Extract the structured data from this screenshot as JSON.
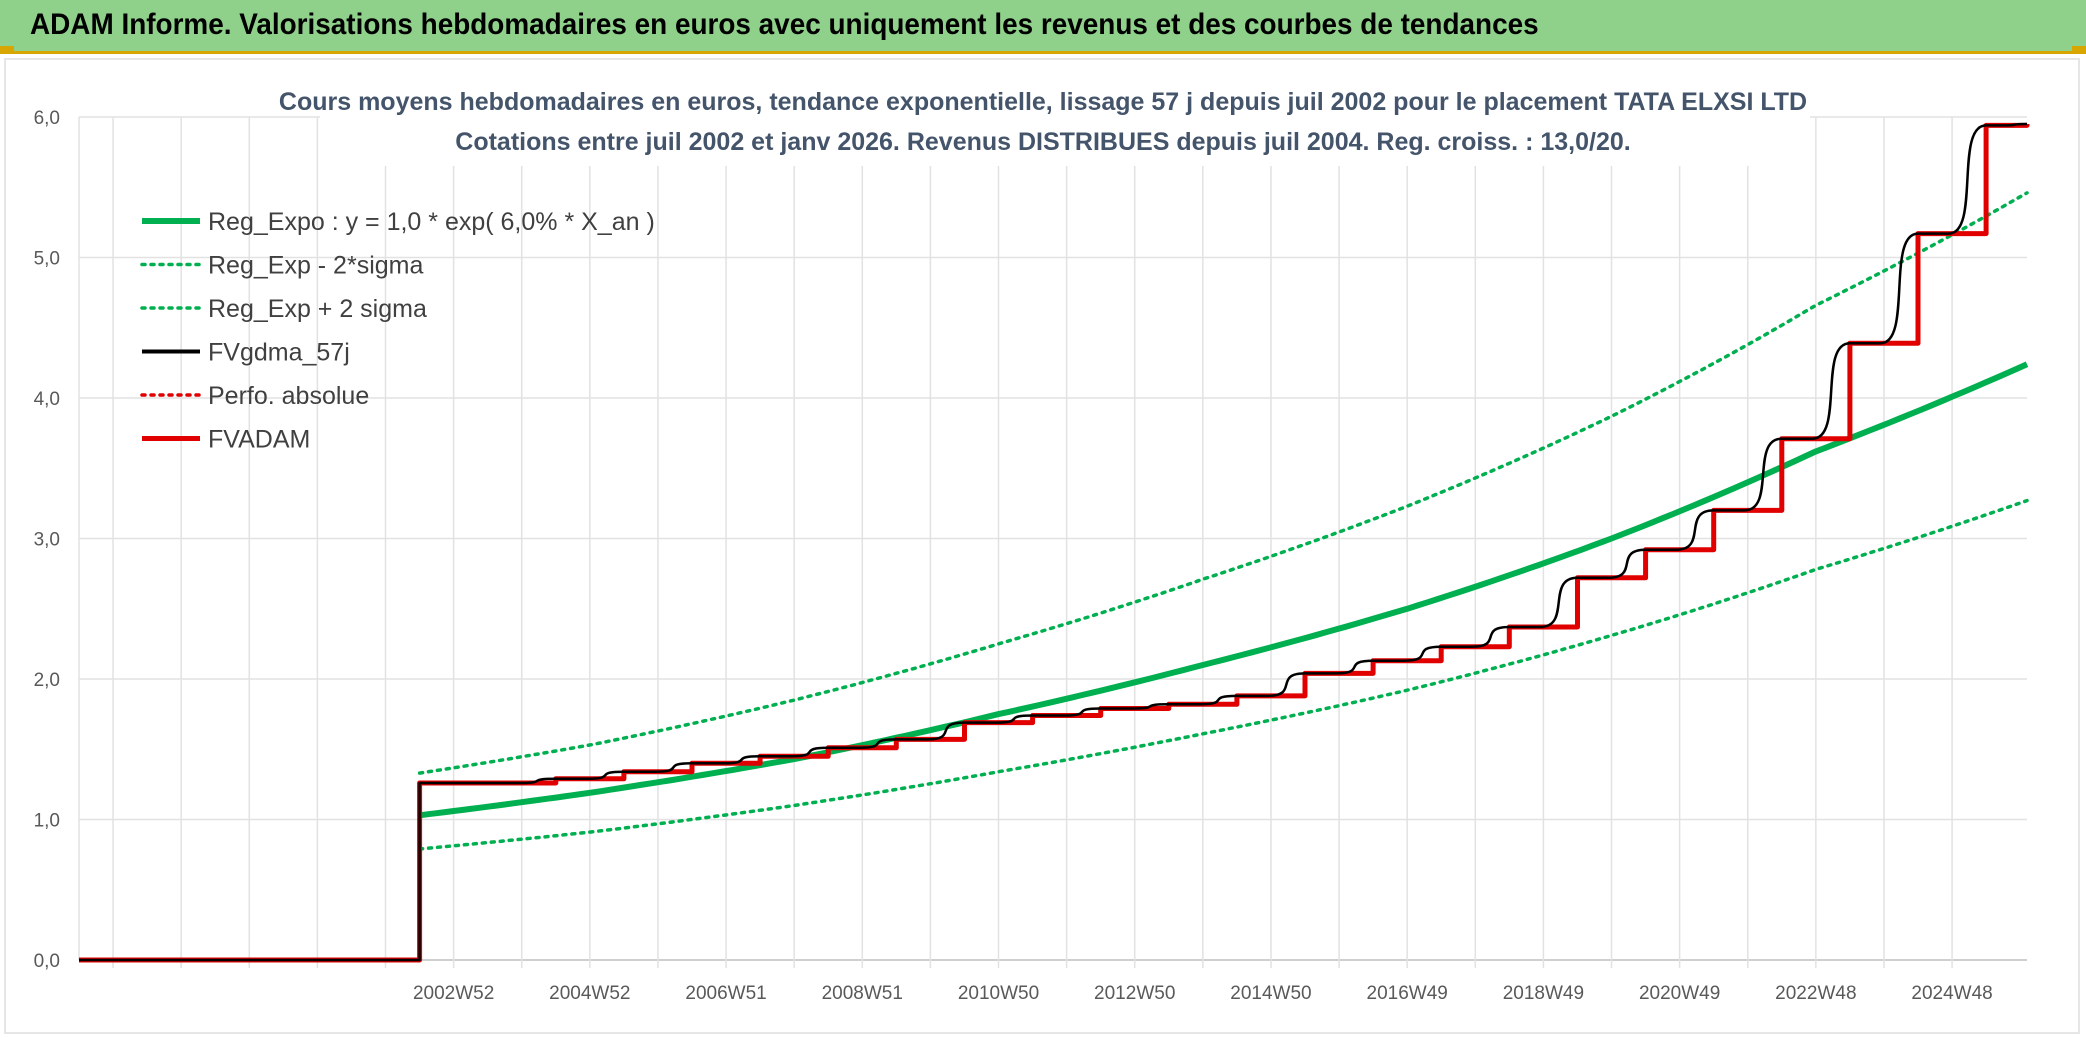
{
  "banner": {
    "title": "ADAM Informe. Valorisations hebdomadaires en euros avec uniquement les revenus et des courbes de tendances"
  },
  "colors": {
    "banner_bg": "#8fd18a",
    "banner_accent": "#d8a600",
    "trend": "#00b050",
    "price": "#e00000",
    "smooth": "#000000",
    "title_text": "#44546a"
  },
  "chart_data": {
    "type": "line",
    "title": "Cours moyens hebdomadaires en euros, tendance exponentielle, lissage 57 j depuis juil 2002 pour le placement TATA  ELXSI LTD",
    "subtitle": "Cotations entre juil 2002 et janv 2026. Revenus DISTRIBUES depuis juil 2004. Reg. croiss. : 13,0/20.",
    "xlabel": "",
    "ylabel": "",
    "ylim": [
      0,
      6
    ],
    "xlim": [
      1997.5,
      2026.1
    ],
    "grid": true,
    "legend_position": "top-left",
    "y_ticks": [
      "0,0",
      "1,0",
      "2,0",
      "3,0",
      "4,0",
      "5,0",
      "6,0"
    ],
    "x_ticks": [
      {
        "label": "2002W52",
        "x": 2003.0
      },
      {
        "label": "2004W52",
        "x": 2005.0
      },
      {
        "label": "2006W51",
        "x": 2007.0
      },
      {
        "label": "2008W51",
        "x": 2009.0
      },
      {
        "label": "2010W50",
        "x": 2011.0
      },
      {
        "label": "2012W50",
        "x": 2013.0
      },
      {
        "label": "2014W50",
        "x": 2015.0
      },
      {
        "label": "2016W49",
        "x": 2017.0
      },
      {
        "label": "2018W49",
        "x": 2019.0
      },
      {
        "label": "2020W49",
        "x": 2021.0
      },
      {
        "label": "2022W48",
        "x": 2023.0
      },
      {
        "label": "2024W48",
        "x": 2025.0
      }
    ],
    "series": [
      {
        "name": "Reg_Expo : y = 1,0 * exp( 6,0% *  X_an )",
        "style": "solid-thick",
        "color": "#00b050",
        "x": [
          2002.5,
          2005.0,
          2008.0,
          2011.0,
          2014.0,
          2017.0,
          2020.0,
          2023.0,
          2026.1
        ],
        "y": [
          1.03,
          1.19,
          1.43,
          1.75,
          2.1,
          2.5,
          3.0,
          3.62,
          4.24
        ]
      },
      {
        "name": "Reg_Exp - 2*sigma",
        "style": "dotted",
        "color": "#00b050",
        "x": [
          2002.5,
          2005.0,
          2008.0,
          2011.0,
          2014.0,
          2017.0,
          2020.0,
          2023.0,
          2026.1
        ],
        "y": [
          0.79,
          0.91,
          1.1,
          1.34,
          1.61,
          1.92,
          2.31,
          2.78,
          3.27
        ]
      },
      {
        "name": "Reg_Exp + 2 sigma",
        "style": "dotted",
        "color": "#00b050",
        "x": [
          2002.5,
          2005.0,
          2008.0,
          2011.0,
          2014.0,
          2017.0,
          2020.0,
          2023.0,
          2026.1
        ],
        "y": [
          1.33,
          1.53,
          1.85,
          2.25,
          2.71,
          3.23,
          3.87,
          4.66,
          5.46
        ]
      },
      {
        "name": "FVgdma_57j",
        "style": "smooth-step",
        "color": "#000000",
        "x": [
          1997.5,
          2002.5,
          2002.5,
          2004.5,
          2005.5,
          2006.5,
          2007.5,
          2008.5,
          2009.5,
          2010.5,
          2011.5,
          2012.5,
          2013.5,
          2014.5,
          2015.5,
          2016.5,
          2017.5,
          2018.5,
          2019.5,
          2020.5,
          2021.5,
          2022.5,
          2023.5,
          2024.5,
          2025.5,
          2026.1
        ],
        "y": [
          0,
          0,
          1.26,
          1.29,
          1.34,
          1.4,
          1.45,
          1.51,
          1.57,
          1.69,
          1.74,
          1.79,
          1.82,
          1.88,
          2.04,
          2.13,
          2.23,
          2.37,
          2.72,
          2.92,
          3.2,
          3.71,
          4.39,
          5.17,
          5.94,
          5.95
        ]
      },
      {
        "name": "Perfo. absolue",
        "style": "dotted",
        "color": "#e00000",
        "x": [],
        "y": []
      },
      {
        "name": "FVADAM",
        "style": "step-thick",
        "color": "#e00000",
        "x": [
          1997.5,
          2002.5,
          2002.5,
          2004.5,
          2005.5,
          2006.5,
          2007.5,
          2008.5,
          2009.5,
          2010.5,
          2011.5,
          2012.5,
          2013.5,
          2014.5,
          2015.5,
          2016.5,
          2017.5,
          2018.5,
          2019.5,
          2020.5,
          2021.5,
          2022.5,
          2023.5,
          2024.5,
          2025.5,
          2026.1
        ],
        "y": [
          0,
          0,
          1.26,
          1.29,
          1.34,
          1.4,
          1.45,
          1.51,
          1.57,
          1.69,
          1.74,
          1.79,
          1.82,
          1.88,
          2.04,
          2.13,
          2.23,
          2.37,
          2.72,
          2.92,
          3.2,
          3.71,
          4.39,
          5.17,
          5.94,
          5.95
        ]
      }
    ]
  }
}
